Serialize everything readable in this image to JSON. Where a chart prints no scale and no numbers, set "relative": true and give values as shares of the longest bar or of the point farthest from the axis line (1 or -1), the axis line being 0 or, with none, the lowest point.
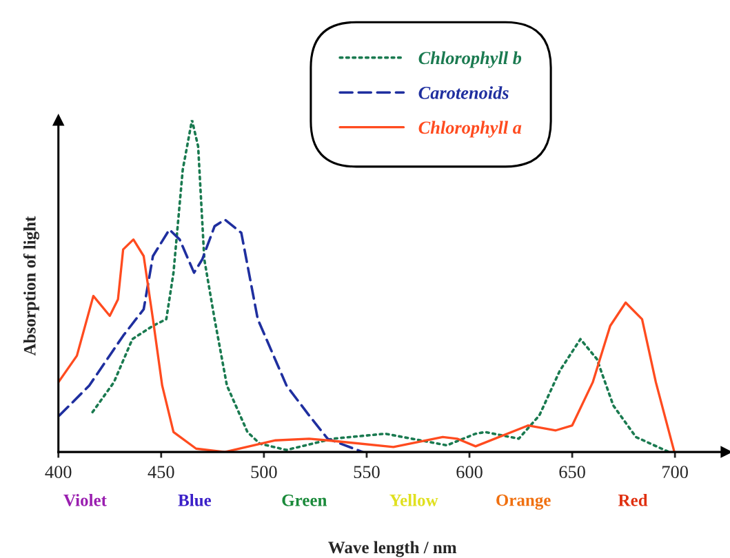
{
  "chart_data": {
    "type": "line",
    "relative": true,
    "xlabel": "Wave length / nm",
    "ylabel": "Absorption of light",
    "xlim": [
      400,
      725
    ],
    "xticks": [
      400,
      450,
      500,
      550,
      600,
      650,
      700
    ],
    "legend": "top right",
    "grid": false,
    "annotations": [
      "Violet",
      "Blue",
      "Green",
      "Yellow",
      "Orange",
      "Red"
    ],
    "series": [
      {
        "name": "Chlorophyll b",
        "color": "#1a7a50",
        "line_style": "dotted",
        "x": [
          416.6,
          427,
          436,
          446,
          452.5,
          456,
          460.5,
          465,
          468,
          471,
          476,
          482,
          492,
          498,
          511,
          533.5,
          559,
          589,
          603,
          607.6,
          624,
          634,
          644,
          654,
          662,
          670,
          681,
          697
        ],
        "values": [
          0.12,
          0.21,
          0.34,
          0.38,
          0.4,
          0.54,
          0.85,
          1.0,
          0.92,
          0.58,
          0.4,
          0.2,
          0.06,
          0.025,
          0.006,
          0.04,
          0.055,
          0.02,
          0.055,
          0.06,
          0.04,
          0.11,
          0.245,
          0.34,
          0.28,
          0.14,
          0.045,
          0.0
        ]
      },
      {
        "name": "Carotenoids",
        "color": "#1f2f9f",
        "line_style": "dashed",
        "x": [
          400.5,
          415,
          431.5,
          441.5,
          446,
          454,
          459,
          466,
          470,
          476,
          481,
          489,
          497,
          511,
          522,
          531,
          548
        ],
        "values": [
          0.11,
          0.2,
          0.35,
          0.43,
          0.59,
          0.67,
          0.64,
          0.54,
          0.58,
          0.68,
          0.7,
          0.66,
          0.4,
          0.2,
          0.11,
          0.04,
          0.0
        ]
      },
      {
        "name": "Chlorophyll a",
        "color": "#ff4b1f",
        "line_style": "solid",
        "x": [
          400,
          409,
          417,
          425,
          429,
          431.5,
          436.5,
          441.5,
          446,
          450.5,
          456,
          467,
          481,
          505.6,
          522,
          531,
          563,
          587,
          594,
          603,
          628.6,
          642,
          650,
          660,
          668.5,
          676,
          684,
          690.7,
          699.7
        ],
        "values": [
          0.21,
          0.29,
          0.47,
          0.41,
          0.46,
          0.61,
          0.64,
          0.59,
          0.4,
          0.2,
          0.06,
          0.01,
          0.0,
          0.035,
          0.04,
          0.035,
          0.015,
          0.045,
          0.04,
          0.017,
          0.08,
          0.065,
          0.08,
          0.21,
          0.38,
          0.45,
          0.4,
          0.21,
          0.0
        ]
      }
    ]
  }
}
